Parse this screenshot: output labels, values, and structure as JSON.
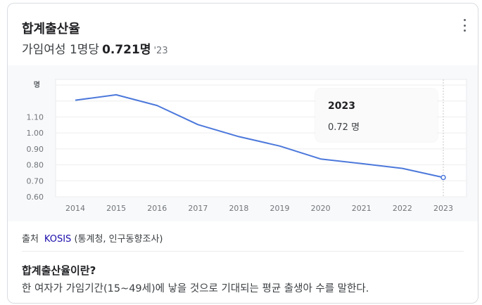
{
  "card": {
    "title": "합계출산율",
    "subtitle_prefix": "가임여성 1명당",
    "subtitle_value": "0.721명",
    "subtitle_year": "'23"
  },
  "menu_icon": "more-vert-icon",
  "tooltip": {
    "year": "2023",
    "value": "0.72 명"
  },
  "source": {
    "label": "출처",
    "link": "KOSIS",
    "detail": "(통계청, 인구동향조사)"
  },
  "definition": {
    "title": "합계출산율이란?",
    "text": "한 여자가 가임기간(15~49세)에 낳을 것으로 기대되는 평균 출생아 수를 말한다."
  },
  "chart_data": {
    "type": "line",
    "ylabel": "명",
    "x": [
      "2014",
      "2015",
      "2016",
      "2017",
      "2018",
      "2019",
      "2020",
      "2021",
      "2022",
      "2023"
    ],
    "series": [
      {
        "values": [
          1.205,
          1.239,
          1.172,
          1.052,
          0.977,
          0.918,
          0.837,
          0.808,
          0.778,
          0.721
        ]
      }
    ],
    "yticks": [
      "0.60",
      "0.70",
      "0.80",
      "0.90",
      "1.00",
      "1.10"
    ],
    "ylim": [
      0.6,
      1.3
    ],
    "grid": true,
    "line_color": "#4c78db",
    "highlight_index": 9
  }
}
